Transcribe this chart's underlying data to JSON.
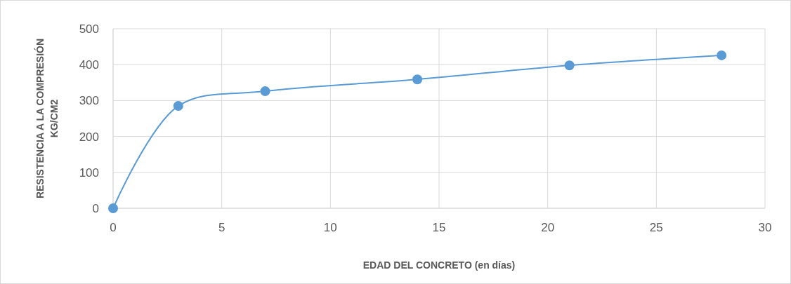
{
  "chart_data": {
    "type": "line",
    "xlabel": "EDAD DEL CONCRETO (en días)",
    "ylabel": "RESISTENCIA A LA COMPRESIÓN\nKG/CM2",
    "x": [
      0,
      3,
      7,
      14,
      21,
      28
    ],
    "series": [
      {
        "color": "#5b9bd5",
        "values": [
          0,
          285,
          326,
          359,
          398,
          426
        ]
      }
    ],
    "xlim": [
      0,
      30
    ],
    "xticks": [
      0,
      5,
      10,
      15,
      20,
      25,
      30
    ],
    "ylim": [
      0,
      500
    ],
    "yticks": [
      0,
      100,
      200,
      300,
      400,
      500
    ],
    "grid": true,
    "marker": "circle",
    "line_style": "solid"
  }
}
